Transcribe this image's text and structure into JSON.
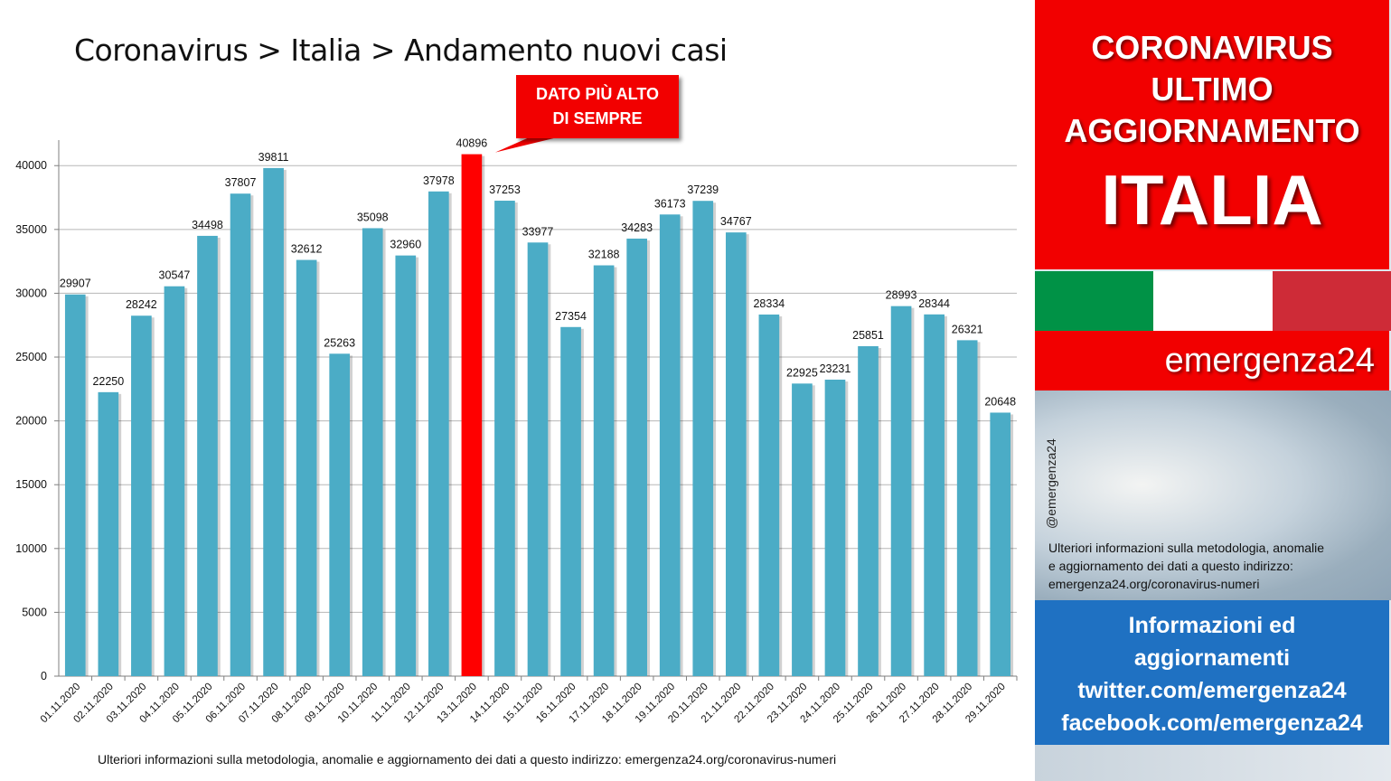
{
  "chart_data": {
    "type": "bar",
    "title": "Coronavirus > Italia > Andamento nuovi casi",
    "categories": [
      "01.11.2020",
      "02.11.2020",
      "03.11.2020",
      "04.11.2020",
      "05.11.2020",
      "06.11.2020",
      "07.11.2020",
      "08.11.2020",
      "09.11.2020",
      "10.11.2020",
      "11.11.2020",
      "12.11.2020",
      "13.11.2020",
      "14.11.2020",
      "15.11.2020",
      "16.11.2020",
      "17.11.2020",
      "18.11.2020",
      "19.11.2020",
      "20.11.2020",
      "21.11.2020",
      "22.11.2020",
      "23.11.2020",
      "24.11.2020",
      "25.11.2020",
      "26.11.2020",
      "27.11.2020",
      "28.11.2020",
      "29.11.2020"
    ],
    "values": [
      29907,
      22250,
      28242,
      30547,
      34498,
      37807,
      39811,
      32612,
      25263,
      35098,
      32960,
      37978,
      40896,
      37253,
      33977,
      27354,
      32188,
      34283,
      36173,
      37239,
      34767,
      28334,
      22925,
      23231,
      25851,
      28993,
      28344,
      26321,
      20648
    ],
    "highlight_index": 12,
    "yticks": [
      0,
      5000,
      10000,
      15000,
      20000,
      25000,
      30000,
      35000,
      40000
    ],
    "ylim": [
      0,
      42000
    ],
    "grid": true,
    "colors": {
      "bar": "#4bacc6",
      "highlight": "#ff0000",
      "grid": "#b7b7b7",
      "axis": "#7f7f7f"
    }
  },
  "callout": {
    "line1": "DATO PIÙ ALTO",
    "line2": "DI SEMPRE"
  },
  "footnote": "Ulteriori informazioni sulla metodologia, anomalie e aggiornamento dei dati a questo indirizzo: emergenza24.org/coronavirus-numeri",
  "sidebar": {
    "header_line1": "CORONAVIRUS",
    "header_line2": "ULTIMO",
    "header_line3": "AGGIORNAMENTO",
    "country": "ITALIA",
    "flag_colors": [
      "#009246",
      "#ffffff",
      "#ce2b37"
    ],
    "brand": "emergenza24",
    "handle": "@emergenza24",
    "note_line1": "Ulteriori informazioni sulla metodologia, anomalie",
    "note_line2": "e aggiornamento dei dati a questo indirizzo:",
    "note_line3": "emergenza24.org/coronavirus-numeri",
    "info_line1": "Informazioni ed",
    "info_line2": "aggiornamenti",
    "info_line3": "twitter.com/emergenza24",
    "info_line4": "facebook.com/emergenza24"
  }
}
